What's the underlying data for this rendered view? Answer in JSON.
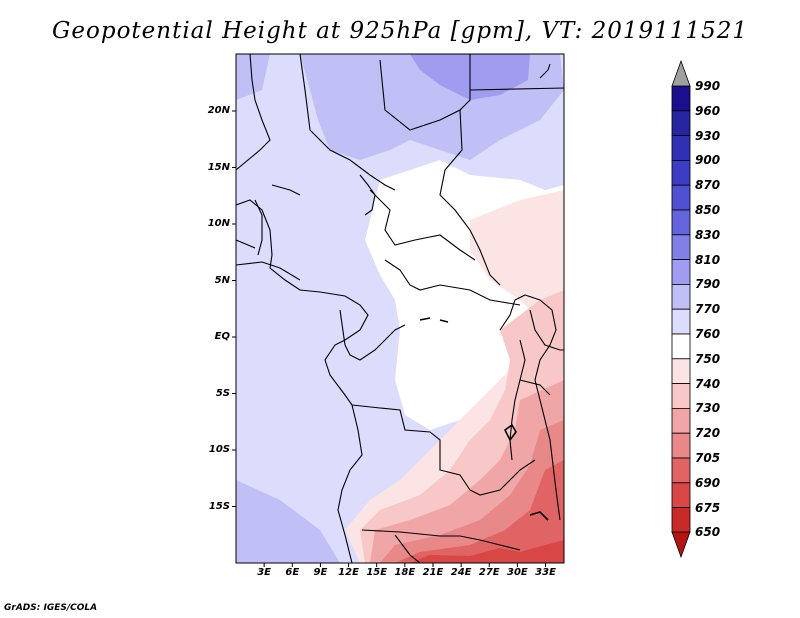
{
  "title": "Geopotential Height at 925hPa [gpm], VT: 2019111521",
  "footer": "GrADS: IGES/COLA",
  "map": {
    "lat_ticks": [
      "20N",
      "15N",
      "10N",
      "5N",
      "EQ",
      "5S",
      "10S",
      "15S"
    ],
    "lon_ticks": [
      "3E",
      "6E",
      "9E",
      "12E",
      "15E",
      "18E",
      "21E",
      "24E",
      "27E",
      "30E",
      "33E"
    ]
  },
  "colorbar": {
    "labels": [
      "990",
      "960",
      "930",
      "900",
      "870",
      "850",
      "830",
      "810",
      "790",
      "770",
      "760",
      "750",
      "740",
      "730",
      "720",
      "705",
      "690",
      "675",
      "650"
    ],
    "colors": [
      "#1a0f8f",
      "#26249f",
      "#3030b4",
      "#3c3cc4",
      "#5050d2",
      "#6464dc",
      "#8080e6",
      "#a09cf0",
      "#c0c0f6",
      "#dcdcfc",
      "#ffffff",
      "#fce4e4",
      "#f8c8c8",
      "#f0a6a6",
      "#e88888",
      "#e06464",
      "#d84646",
      "#c82a2a",
      "#b41414"
    ]
  },
  "chart_data": {
    "type": "heatmap",
    "title": "Geopotential Height at 925hPa [gpm], VT: 2019111521",
    "units": "gpm",
    "levels": [
      650,
      675,
      690,
      705,
      720,
      730,
      740,
      750,
      760,
      770,
      790,
      810,
      830,
      850,
      870,
      900,
      930,
      960,
      990
    ],
    "lon_range": [
      0,
      35
    ],
    "lat_range": [
      -20,
      24
    ],
    "xlabel": "",
    "ylabel": ""
  }
}
